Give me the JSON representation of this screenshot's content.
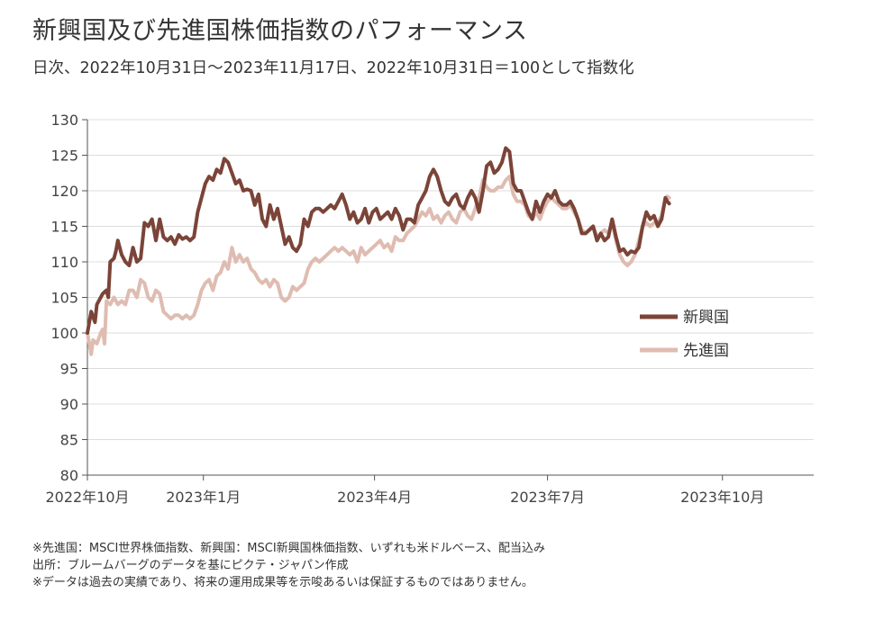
{
  "title": "新興国及び先進国株価指数のパフォーマンス",
  "subtitle": "日次、2022年10月31日～2023年11月17日、2022年10月31日＝100として指数化",
  "notes": [
    "※先進国：MSCI世界株価指数、新興国：MSCI新興国株価指数、いずれも米ドルベース、配当込み",
    "出所：ブルームバーグのデータを基にピクテ・ジャパン作成",
    "※データは過去の実績であり、将来の運用成果等を示唆あるいは保証するものではありません。"
  ],
  "chart_data": {
    "type": "line",
    "title": "新興国及び先進国株価指数のパフォーマンス",
    "xlabel": "",
    "ylabel": "",
    "ylim": [
      80,
      130
    ],
    "yticks": [
      80,
      85,
      90,
      95,
      100,
      105,
      110,
      115,
      120,
      125,
      130
    ],
    "x_ticks": [
      {
        "t": 0,
        "label": "2022年10月"
      },
      {
        "t": 61,
        "label": "2023年1月"
      },
      {
        "t": 151,
        "label": "2023年4月"
      },
      {
        "t": 242,
        "label": "2023年7月"
      },
      {
        "t": 334,
        "label": "2023年10月"
      }
    ],
    "x_range_days": [
      0,
      382
    ],
    "grid": true,
    "legend_position": "right",
    "series": [
      {
        "name": "新興国",
        "color": "#7b4438",
        "points": [
          [
            0,
            100
          ],
          [
            2,
            103
          ],
          [
            4,
            101.5
          ],
          [
            5,
            104
          ],
          [
            8,
            105.5
          ],
          [
            10,
            106
          ],
          [
            11,
            105
          ],
          [
            12,
            110
          ],
          [
            14,
            110.5
          ],
          [
            15,
            111.5
          ],
          [
            16,
            113
          ],
          [
            18,
            111
          ],
          [
            20,
            110
          ],
          [
            22,
            109.5
          ],
          [
            24,
            112
          ],
          [
            26,
            110
          ],
          [
            28,
            110.5
          ],
          [
            30,
            115.5
          ],
          [
            32,
            115
          ],
          [
            34,
            116
          ],
          [
            36,
            113
          ],
          [
            38,
            116
          ],
          [
            40,
            113.5
          ],
          [
            42,
            113
          ],
          [
            44,
            113.5
          ],
          [
            46,
            112.5
          ],
          [
            48,
            113.8
          ],
          [
            50,
            113.2
          ],
          [
            52,
            113.5
          ],
          [
            54,
            113
          ],
          [
            56,
            113.5
          ],
          [
            58,
            117
          ],
          [
            60,
            119
          ],
          [
            62,
            121
          ],
          [
            64,
            122
          ],
          [
            66,
            121.5
          ],
          [
            68,
            123
          ],
          [
            70,
            122.5
          ],
          [
            72,
            124.5
          ],
          [
            74,
            124
          ],
          [
            76,
            122.5
          ],
          [
            78,
            121
          ],
          [
            80,
            121.5
          ],
          [
            82,
            120
          ],
          [
            84,
            120.2
          ],
          [
            86,
            120
          ],
          [
            88,
            118
          ],
          [
            90,
            119.5
          ],
          [
            92,
            116
          ],
          [
            94,
            115
          ],
          [
            96,
            118
          ],
          [
            98,
            116
          ],
          [
            100,
            117.5
          ],
          [
            102,
            115
          ],
          [
            104,
            112.5
          ],
          [
            106,
            113.5
          ],
          [
            108,
            112
          ],
          [
            110,
            111.5
          ],
          [
            112,
            112.5
          ],
          [
            114,
            116
          ],
          [
            116,
            115
          ],
          [
            118,
            117
          ],
          [
            120,
            117.5
          ],
          [
            122,
            117.5
          ],
          [
            124,
            117
          ],
          [
            126,
            117.5
          ],
          [
            128,
            118
          ],
          [
            130,
            117.5
          ],
          [
            132,
            118.5
          ],
          [
            134,
            119.5
          ],
          [
            136,
            118
          ],
          [
            138,
            116
          ],
          [
            140,
            117
          ],
          [
            142,
            115.5
          ],
          [
            144,
            116
          ],
          [
            146,
            117.5
          ],
          [
            148,
            115.5
          ],
          [
            150,
            117
          ],
          [
            152,
            117.5
          ],
          [
            154,
            116
          ],
          [
            156,
            116.5
          ],
          [
            158,
            117
          ],
          [
            160,
            116
          ],
          [
            162,
            117.5
          ],
          [
            164,
            116.5
          ],
          [
            166,
            114.5
          ],
          [
            168,
            116
          ],
          [
            170,
            116
          ],
          [
            172,
            115.5
          ],
          [
            174,
            118
          ],
          [
            176,
            119
          ],
          [
            178,
            120
          ],
          [
            180,
            122
          ],
          [
            182,
            123
          ],
          [
            184,
            122
          ],
          [
            186,
            120
          ],
          [
            188,
            118.5
          ],
          [
            190,
            118
          ],
          [
            192,
            119
          ],
          [
            194,
            119.5
          ],
          [
            196,
            118
          ],
          [
            198,
            117.5
          ],
          [
            200,
            119
          ],
          [
            202,
            120
          ],
          [
            204,
            119
          ],
          [
            206,
            117
          ],
          [
            208,
            120
          ],
          [
            210,
            123.5
          ],
          [
            212,
            124
          ],
          [
            214,
            122.5
          ],
          [
            216,
            123
          ],
          [
            218,
            124
          ],
          [
            220,
            126
          ],
          [
            222,
            125.5
          ],
          [
            224,
            121
          ],
          [
            226,
            120
          ],
          [
            228,
            120
          ],
          [
            230,
            118.5
          ],
          [
            232,
            117
          ],
          [
            234,
            116
          ],
          [
            236,
            118.5
          ],
          [
            238,
            117
          ],
          [
            240,
            118.5
          ],
          [
            242,
            119.5
          ],
          [
            244,
            119
          ],
          [
            246,
            120
          ],
          [
            248,
            118.5
          ],
          [
            250,
            118
          ],
          [
            252,
            118
          ],
          [
            254,
            118.5
          ],
          [
            256,
            117.5
          ],
          [
            258,
            116
          ],
          [
            260,
            114
          ],
          [
            262,
            114
          ],
          [
            264,
            114.5
          ],
          [
            266,
            115
          ],
          [
            268,
            113
          ],
          [
            270,
            114
          ],
          [
            272,
            113
          ],
          [
            274,
            113.5
          ],
          [
            276,
            116
          ],
          [
            278,
            113.5
          ],
          [
            280,
            111.5
          ],
          [
            282,
            111.8
          ],
          [
            284,
            111
          ],
          [
            286,
            111.5
          ],
          [
            288,
            111.3
          ],
          [
            290,
            112
          ],
          [
            292,
            115
          ],
          [
            294,
            117
          ],
          [
            296,
            116
          ],
          [
            298,
            116.5
          ],
          [
            300,
            115
          ],
          [
            302,
            116
          ],
          [
            304,
            119
          ],
          [
            305,
            118.5
          ],
          [
            306,
            118.2
          ]
        ]
      },
      {
        "name": "先進国",
        "color": "#dfbcb1",
        "points": [
          [
            0,
            100
          ],
          [
            1,
            98.5
          ],
          [
            2,
            97
          ],
          [
            3,
            99
          ],
          [
            5,
            98.5
          ],
          [
            7,
            100
          ],
          [
            8,
            100.5
          ],
          [
            9,
            98.5
          ],
          [
            10,
            104.5
          ],
          [
            12,
            104
          ],
          [
            14,
            105
          ],
          [
            16,
            104
          ],
          [
            18,
            104.5
          ],
          [
            20,
            104
          ],
          [
            22,
            106
          ],
          [
            24,
            106
          ],
          [
            26,
            105
          ],
          [
            28,
            107.5
          ],
          [
            30,
            107
          ],
          [
            32,
            105
          ],
          [
            34,
            104.5
          ],
          [
            36,
            106
          ],
          [
            38,
            105.5
          ],
          [
            40,
            103
          ],
          [
            42,
            102.5
          ],
          [
            44,
            102
          ],
          [
            46,
            102.5
          ],
          [
            48,
            102.5
          ],
          [
            50,
            102
          ],
          [
            52,
            102.5
          ],
          [
            54,
            102
          ],
          [
            56,
            102.5
          ],
          [
            58,
            104
          ],
          [
            60,
            106
          ],
          [
            62,
            107
          ],
          [
            64,
            107.5
          ],
          [
            66,
            106
          ],
          [
            68,
            108
          ],
          [
            70,
            108.5
          ],
          [
            72,
            110
          ],
          [
            74,
            109
          ],
          [
            76,
            112
          ],
          [
            78,
            110
          ],
          [
            80,
            111
          ],
          [
            82,
            110
          ],
          [
            84,
            110.5
          ],
          [
            86,
            109
          ],
          [
            88,
            108.5
          ],
          [
            90,
            107.5
          ],
          [
            92,
            107
          ],
          [
            94,
            107.5
          ],
          [
            96,
            106.5
          ],
          [
            98,
            107.5
          ],
          [
            100,
            107
          ],
          [
            102,
            105
          ],
          [
            104,
            104.5
          ],
          [
            106,
            105
          ],
          [
            108,
            106.5
          ],
          [
            110,
            106
          ],
          [
            112,
            106.5
          ],
          [
            114,
            107
          ],
          [
            116,
            109
          ],
          [
            118,
            110
          ],
          [
            120,
            110.5
          ],
          [
            122,
            110
          ],
          [
            124,
            110.5
          ],
          [
            126,
            111
          ],
          [
            128,
            111.5
          ],
          [
            130,
            112
          ],
          [
            132,
            111.5
          ],
          [
            134,
            112
          ],
          [
            136,
            111.5
          ],
          [
            138,
            111
          ],
          [
            140,
            111.5
          ],
          [
            142,
            110
          ],
          [
            144,
            112
          ],
          [
            146,
            111
          ],
          [
            148,
            111.5
          ],
          [
            150,
            112
          ],
          [
            152,
            112.5
          ],
          [
            154,
            113
          ],
          [
            156,
            112
          ],
          [
            158,
            112.5
          ],
          [
            160,
            111.5
          ],
          [
            162,
            113.5
          ],
          [
            164,
            113
          ],
          [
            166,
            113
          ],
          [
            168,
            114
          ],
          [
            170,
            114.5
          ],
          [
            172,
            115
          ],
          [
            174,
            116
          ],
          [
            176,
            117
          ],
          [
            178,
            116.5
          ],
          [
            180,
            117.5
          ],
          [
            182,
            116
          ],
          [
            184,
            116.5
          ],
          [
            186,
            115.5
          ],
          [
            188,
            116.5
          ],
          [
            190,
            117
          ],
          [
            192,
            116
          ],
          [
            194,
            115.5
          ],
          [
            196,
            117
          ],
          [
            198,
            117.5
          ],
          [
            200,
            116.5
          ],
          [
            202,
            116
          ],
          [
            204,
            117.5
          ],
          [
            206,
            119
          ],
          [
            208,
            121.5
          ],
          [
            210,
            120.5
          ],
          [
            212,
            120
          ],
          [
            214,
            120
          ],
          [
            216,
            120.5
          ],
          [
            218,
            120.5
          ],
          [
            220,
            121.5
          ],
          [
            222,
            122
          ],
          [
            224,
            119.5
          ],
          [
            226,
            118.5
          ],
          [
            228,
            118.5
          ],
          [
            230,
            118
          ],
          [
            232,
            116.5
          ],
          [
            234,
            116
          ],
          [
            236,
            117
          ],
          [
            238,
            116
          ],
          [
            240,
            117.5
          ],
          [
            242,
            118.5
          ],
          [
            244,
            119
          ],
          [
            246,
            118.5
          ],
          [
            248,
            118
          ],
          [
            250,
            117.5
          ],
          [
            252,
            117.5
          ],
          [
            254,
            118
          ],
          [
            256,
            117
          ],
          [
            258,
            116
          ],
          [
            260,
            114.5
          ],
          [
            262,
            114
          ],
          [
            264,
            114.5
          ],
          [
            266,
            115
          ],
          [
            268,
            113.5
          ],
          [
            270,
            114
          ],
          [
            272,
            114.5
          ],
          [
            274,
            114
          ],
          [
            276,
            115.5
          ],
          [
            278,
            113
          ],
          [
            280,
            111
          ],
          [
            282,
            110
          ],
          [
            284,
            109.5
          ],
          [
            286,
            110
          ],
          [
            288,
            111
          ],
          [
            290,
            113
          ],
          [
            292,
            115
          ],
          [
            294,
            115.5
          ],
          [
            296,
            115
          ],
          [
            298,
            115.5
          ],
          [
            300,
            115.5
          ],
          [
            302,
            116.5
          ],
          [
            304,
            119
          ],
          [
            305,
            119.2
          ],
          [
            306,
            119
          ]
        ]
      }
    ]
  }
}
